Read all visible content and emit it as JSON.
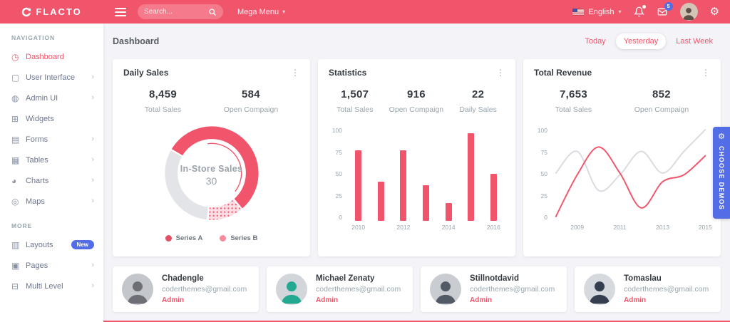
{
  "icons": {
    "kebab": "⋮",
    "gear": "⚙",
    "chevron_down": "▾",
    "chevron_right": "›"
  },
  "colors": {
    "primary": "#f1556c",
    "blue": "#536de6",
    "gray_line": "#d9dbe0"
  },
  "topbar": {
    "brand": "FLACTO",
    "search_placeholder": "Search...",
    "mega_menu_label": "Mega Menu",
    "language_label": "English",
    "mail_badge": "5"
  },
  "sidebar": {
    "nav_heading": "NAVIGATION",
    "more_heading": "MORE",
    "items": [
      {
        "label": "Dashboard",
        "icon": "◷"
      },
      {
        "label": "User Interface",
        "icon": "▢"
      },
      {
        "label": "Admin UI",
        "icon": "◍"
      },
      {
        "label": "Widgets",
        "icon": "⊞"
      },
      {
        "label": "Forms",
        "icon": "▤"
      },
      {
        "label": "Tables",
        "icon": "▦"
      },
      {
        "label": "Charts",
        "icon": "◕"
      },
      {
        "label": "Maps",
        "icon": "◎"
      },
      {
        "label": "Layouts",
        "icon": "▥",
        "badge": "New"
      },
      {
        "label": "Pages",
        "icon": "▣"
      },
      {
        "label": "Multi Level",
        "icon": "⊟"
      }
    ]
  },
  "page": {
    "title": "Dashboard",
    "filters": [
      {
        "label": "Today"
      },
      {
        "label": "Yesterday"
      },
      {
        "label": "Last Week"
      }
    ]
  },
  "cards": [
    {
      "title": "Daily Sales",
      "stats": [
        {
          "value": "8,459",
          "label": "Total Sales"
        },
        {
          "value": "584",
          "label": "Open Compaign"
        }
      ]
    },
    {
      "title": "Statistics",
      "stats": [
        {
          "value": "1,507",
          "label": "Total Sales"
        },
        {
          "value": "916",
          "label": "Open Compaign"
        },
        {
          "value": "22",
          "label": "Daily Sales"
        }
      ]
    },
    {
      "title": "Total Revenue",
      "stats": [
        {
          "value": "7,653",
          "label": "Total Sales"
        },
        {
          "value": "852",
          "label": "Open Compaign"
        }
      ]
    }
  ],
  "chart_data": {
    "daily_sales_donut": {
      "type": "pie",
      "title": "Daily Sales",
      "center_label": "In-Store Sales",
      "center_value": "30",
      "start_deg": 300,
      "segments": [
        {
          "label": "Series A",
          "sweep_deg": 200,
          "color": "#f1556c",
          "dotted": false
        },
        {
          "label": "Series B",
          "sweep_deg": 45,
          "color": "#f58b9c",
          "dotted": true
        },
        {
          "label": "Remainder",
          "sweep_deg": 115,
          "color": "#e3e4e8",
          "dotted": false
        }
      ],
      "legend": [
        {
          "label": "Series A",
          "color": "#e04f62"
        },
        {
          "label": "Series B",
          "color": "#f58b9c"
        }
      ]
    },
    "statistics_bar": {
      "type": "bar",
      "title": "Statistics",
      "categories": [
        2010,
        2011,
        2012,
        2013,
        2014,
        2015,
        2016
      ],
      "values": [
        75,
        42,
        75,
        38,
        19,
        93,
        50
      ],
      "x_tick_labels": [
        "2010",
        "",
        "2012",
        "",
        "2014",
        "",
        "2016"
      ],
      "y_ticks": [
        100,
        75,
        50,
        25,
        0
      ],
      "ylim": [
        0,
        100
      ],
      "bar_color": "#f1556c",
      "grid": false
    },
    "revenue_line": {
      "type": "line",
      "title": "Total Revenue",
      "x": [
        2008,
        2009,
        2010,
        2011,
        2012,
        2013,
        2014,
        2015
      ],
      "x_tick_labels": [
        "",
        "2009",
        "",
        "2011",
        "",
        "2013",
        "",
        "2015"
      ],
      "y_ticks": [
        100,
        75,
        50,
        25,
        0
      ],
      "ylim": [
        0,
        100
      ],
      "grid": false,
      "series": [
        {
          "name": "gray",
          "color": "#d9dbe0",
          "values": [
            50,
            75,
            30,
            48,
            75,
            50,
            75,
            100
          ]
        },
        {
          "name": "red",
          "color": "#f1556c",
          "values": [
            0,
            48,
            80,
            50,
            10,
            40,
            48,
            70
          ]
        }
      ]
    }
  },
  "users": [
    {
      "name": "Chadengle",
      "email": "coderthemes@gmail.com",
      "role": "Admin",
      "avatar_bg": "#c3c7cc",
      "avatar_fg": "#6e6e76"
    },
    {
      "name": "Michael Zenaty",
      "email": "coderthemes@gmail.com",
      "role": "Admin",
      "avatar_bg": "#d2d6da",
      "avatar_fg": "#22a98f"
    },
    {
      "name": "Stillnotdavid",
      "email": "coderthemes@gmail.com",
      "role": "Admin",
      "avatar_bg": "#c9cdd2",
      "avatar_fg": "#525a66"
    },
    {
      "name": "Tomaslau",
      "email": "coderthemes@gmail.com",
      "role": "Admin",
      "avatar_bg": "#d6dade",
      "avatar_fg": "#343e4f"
    }
  ],
  "choose_demos_label": "CHOOSE DEMOS"
}
